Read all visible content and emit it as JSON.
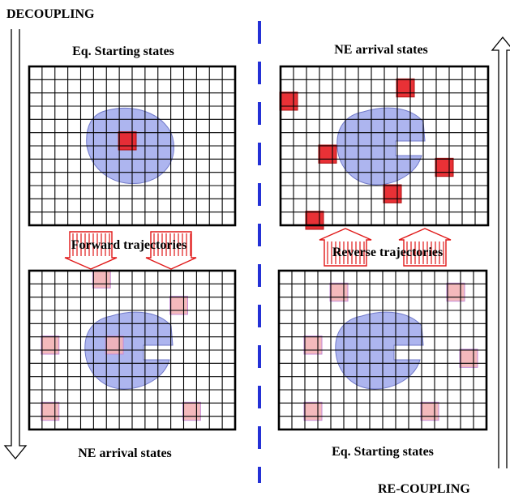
{
  "labels": {
    "decoupling": "DECOUPLING",
    "recoupling": "RE-COUPLING",
    "top_left_title": "Eq. Starting states",
    "top_right_title": "NE arrival states",
    "bottom_left_title": "NE arrival states",
    "bottom_right_title": "Eq. Starting states",
    "forward": "Forward trajectories",
    "reverse": "Reverse trajectories"
  },
  "colors": {
    "region": "#9fa8ec",
    "region_stroke": "#6f78c8",
    "red": "#e8262b",
    "pink": "#f3b1b5",
    "pink_stroke": "#c58ad6",
    "arrow_red": "#e01818",
    "divider": "#2431d6",
    "grid": "#000000"
  },
  "panels": [
    {
      "id": "top-left",
      "pacman": false,
      "cells": [
        {
          "c": 7,
          "r": 5,
          "kind": "red"
        }
      ]
    },
    {
      "id": "top-right",
      "pacman": true,
      "cells": [
        {
          "c": 0,
          "r": 2,
          "kind": "red"
        },
        {
          "c": 9,
          "r": 1,
          "kind": "red"
        },
        {
          "c": 3,
          "r": 6,
          "kind": "red"
        },
        {
          "c": 12,
          "r": 7,
          "kind": "red"
        },
        {
          "c": 8,
          "r": 9,
          "kind": "red"
        },
        {
          "c": 2,
          "r": 11,
          "kind": "red"
        }
      ]
    },
    {
      "id": "bottom-left",
      "pacman": true,
      "cells": [
        {
          "c": 5,
          "r": 0,
          "kind": "pink"
        },
        {
          "c": 11,
          "r": 2,
          "kind": "pink"
        },
        {
          "c": 1,
          "r": 5,
          "kind": "pink"
        },
        {
          "c": 6,
          "r": 5,
          "kind": "pink"
        },
        {
          "c": 1,
          "r": 10,
          "kind": "pink"
        },
        {
          "c": 12,
          "r": 10,
          "kind": "pink"
        }
      ]
    },
    {
      "id": "bottom-right",
      "pacman": true,
      "cells": [
        {
          "c": 4,
          "r": 1,
          "kind": "pink"
        },
        {
          "c": 13,
          "r": 1,
          "kind": "pink"
        },
        {
          "c": 2,
          "r": 5,
          "kind": "pink"
        },
        {
          "c": 14,
          "r": 6,
          "kind": "pink"
        },
        {
          "c": 2,
          "r": 10,
          "kind": "pink"
        },
        {
          "c": 11,
          "r": 10,
          "kind": "pink"
        }
      ]
    }
  ]
}
